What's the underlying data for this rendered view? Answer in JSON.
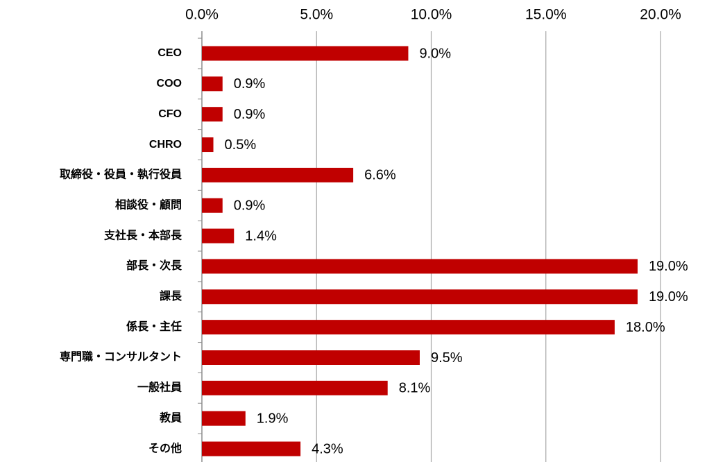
{
  "chart_data": {
    "type": "barh",
    "categories": [
      "CEO",
      "COO",
      "CFO",
      "CHRO",
      "取締役・役員・執行役員",
      "相談役・顧問",
      "支社長・本部長",
      "部長・次長",
      "課長",
      "係長・主任",
      "専門職・コンサルタント",
      "一般社員",
      "教員",
      "その他"
    ],
    "values": [
      9.0,
      0.9,
      0.9,
      0.5,
      6.6,
      0.9,
      1.4,
      19.0,
      19.0,
      18.0,
      9.5,
      8.1,
      1.9,
      4.3
    ],
    "value_labels": [
      "9.0%",
      "0.9%",
      "0.9%",
      "0.5%",
      "6.6%",
      "0.9%",
      "1.4%",
      "19.0%",
      "19.0%",
      "18.0%",
      "9.5%",
      "8.1%",
      "1.9%",
      "4.3%"
    ],
    "color": "#c00000",
    "xlim": [
      0,
      20
    ],
    "xticks": [
      {
        "value": 0,
        "label": "0.0%"
      },
      {
        "value": 5,
        "label": "5.0%"
      },
      {
        "value": 10,
        "label": "10.0%"
      },
      {
        "value": 15,
        "label": "15.0%"
      },
      {
        "value": 20,
        "label": "20.0%"
      }
    ],
    "grid": true
  }
}
